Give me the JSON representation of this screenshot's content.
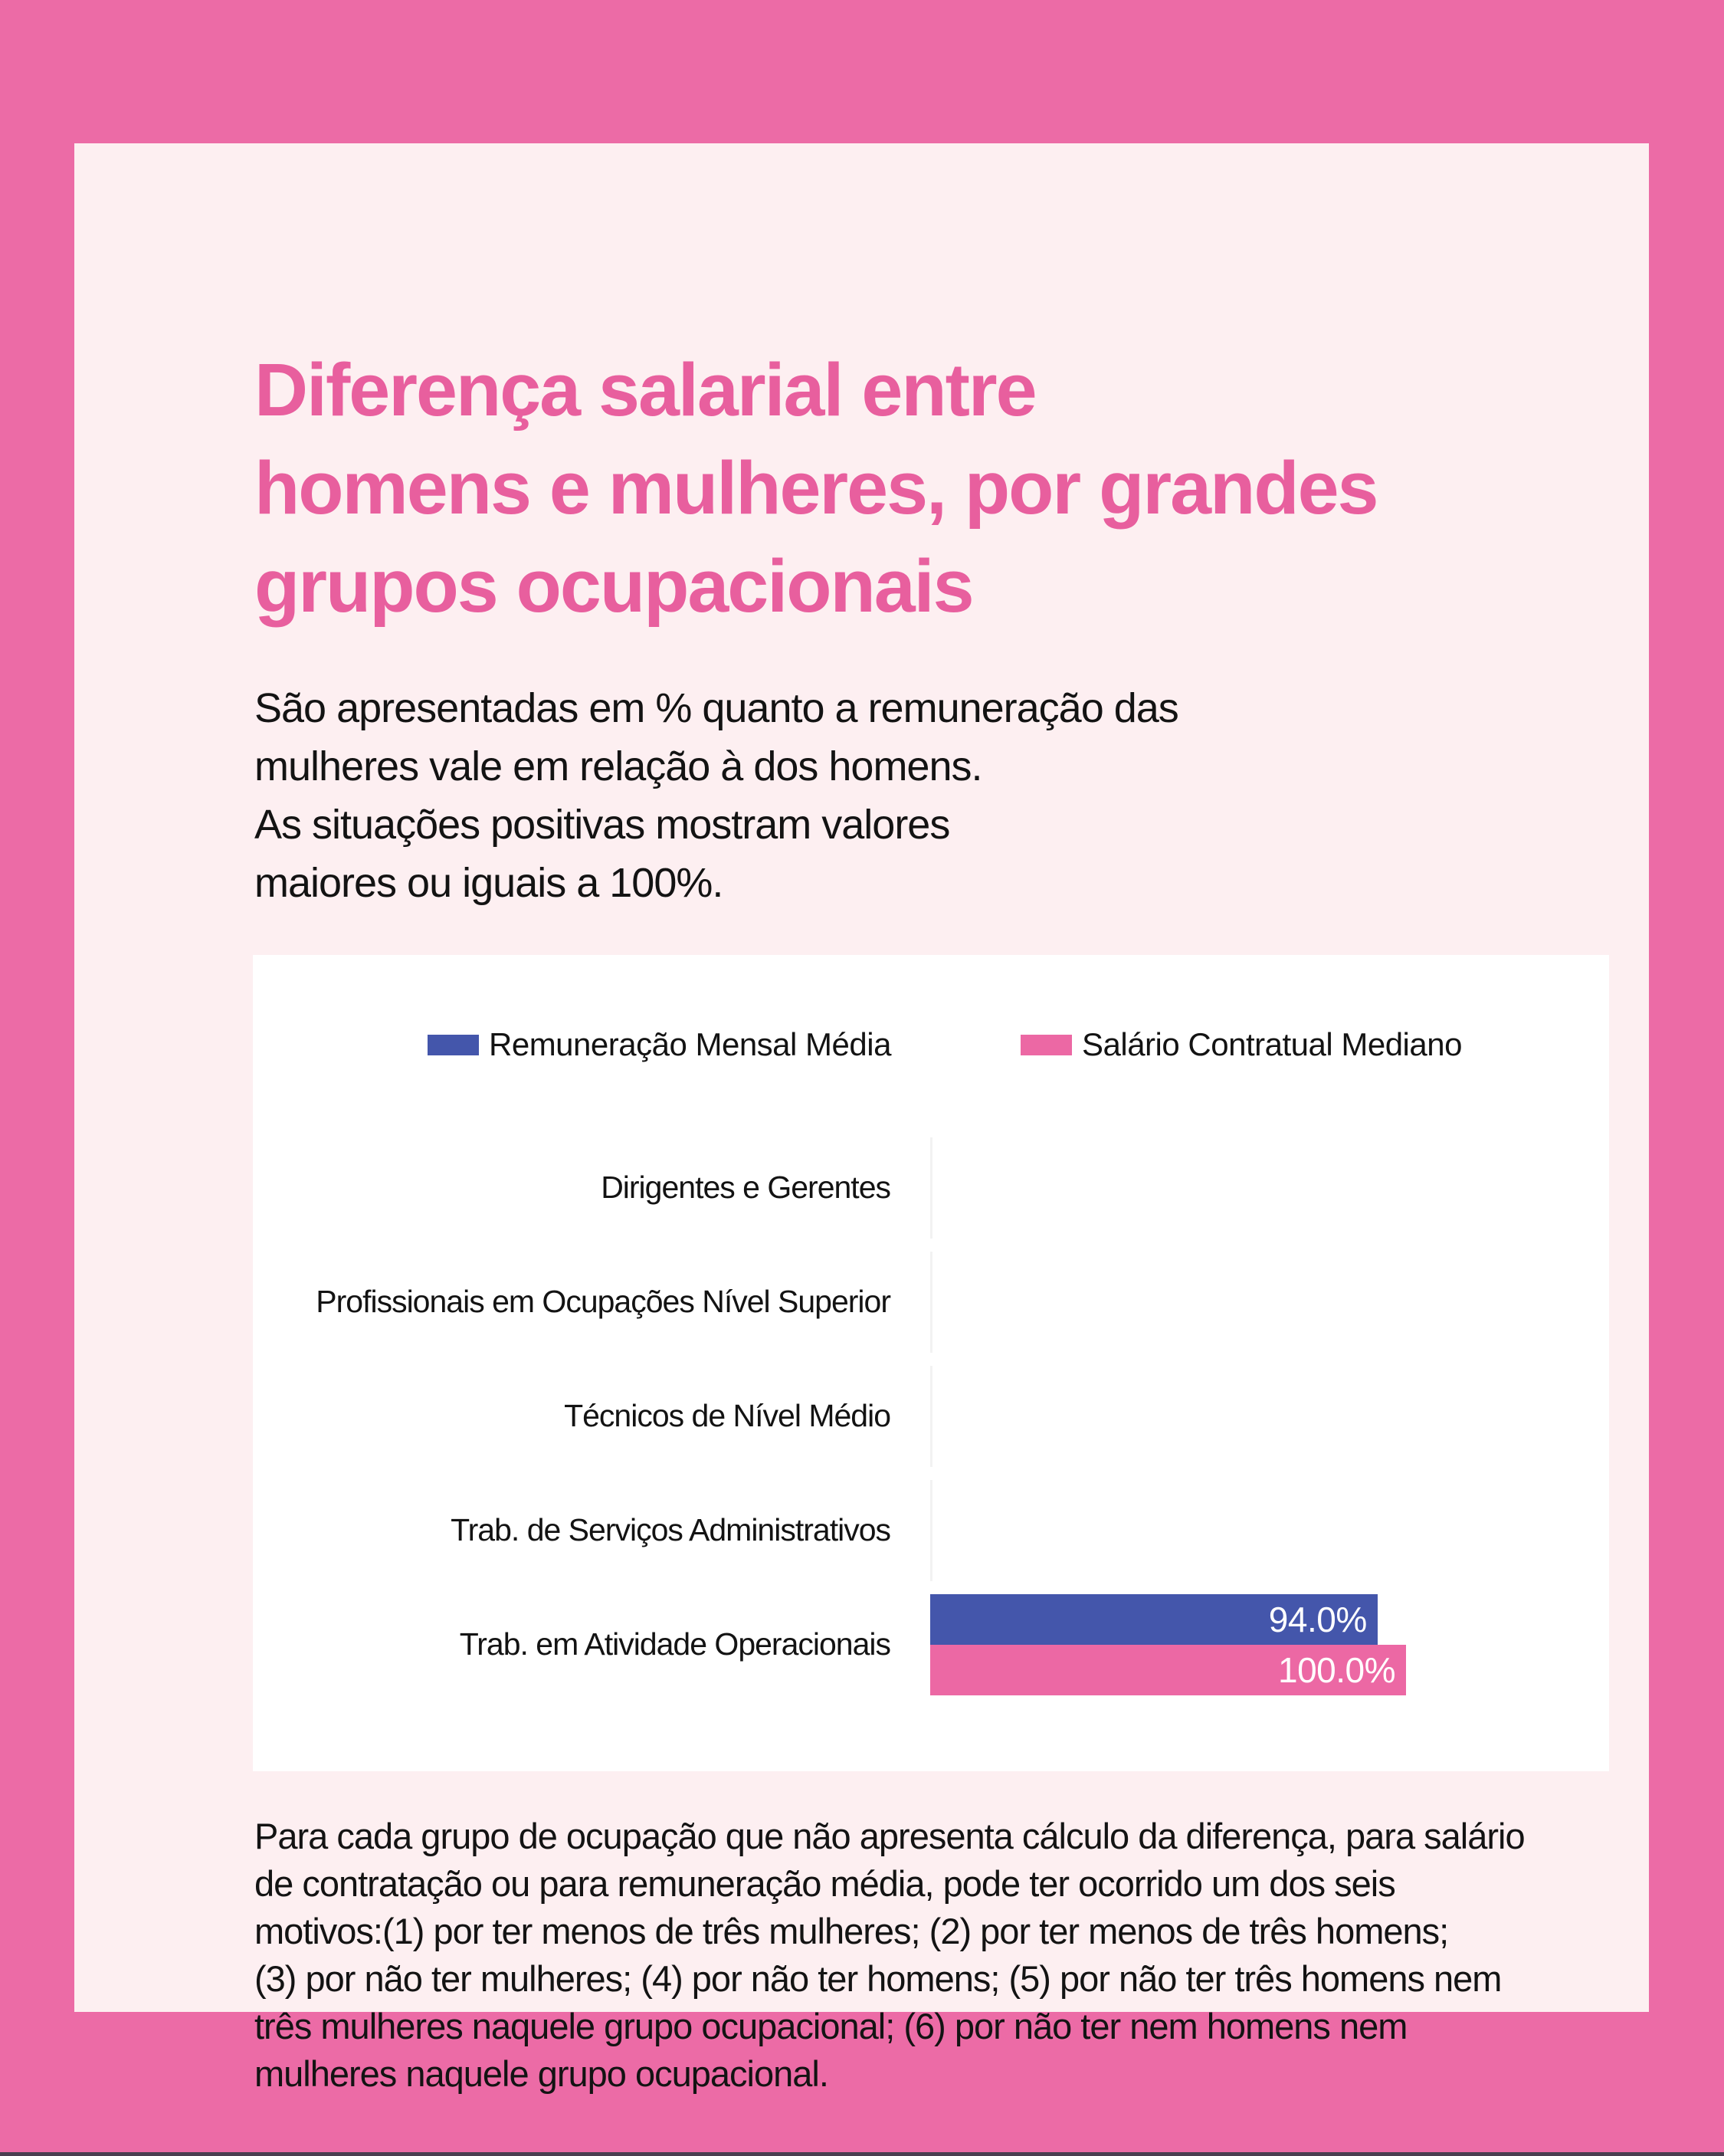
{
  "header": {
    "title": "Diferença salarial entre\nhomens e mulheres, por grandes\ngrupos ocupacionais",
    "subtitle": "São apresentadas em % quanto a remuneração das\nmulheres vale em relação à dos homens.\nAs situações positivas mostram valores\nmaiores ou iguais a 100%."
  },
  "chart_data": {
    "type": "bar",
    "orientation": "horizontal",
    "categories": [
      "Dirigentes e Gerentes",
      "Profissionais em Ocupações Nível Superior",
      "Técnicos de Nível Médio",
      "Trab. de Serviços Administrativos",
      "Trab. em Atividade Operacionais"
    ],
    "series": [
      {
        "name": "Remuneração Mensal Média",
        "color": "#4456ab",
        "values": [
          null,
          null,
          null,
          null,
          94.0
        ],
        "labels": [
          null,
          null,
          null,
          null,
          "94.0%"
        ]
      },
      {
        "name": "Salário Contratual Mediano",
        "color": "#ec68a4",
        "values": [
          null,
          null,
          null,
          null,
          100.0
        ],
        "labels": [
          null,
          null,
          null,
          null,
          "100.0%"
        ]
      }
    ],
    "xlim": [
      0,
      100
    ],
    "value_unit": "%",
    "legend_position": "top",
    "grid": false
  },
  "footnote": {
    "text": "Para cada grupo de ocupação que não apresenta cálculo da diferença, para salário\nde contratação ou para remuneração média, pode ter ocorrido um dos seis\nmotivos:(1) por ter menos de três mulheres; (2) por ter menos de três homens;\n(3) por não ter mulheres; (4) por não ter homens; (5) por não ter três homens nem\ntrês mulheres naquele grupo ocupacional; (6) por não ter nem homens nem\nmulheres naquele grupo ocupacional."
  },
  "colors": {
    "background": "#ec6ba6",
    "panel": "#fdeff1",
    "title": "#e85f9e",
    "bar_blue": "#4456ab",
    "bar_pink": "#ec68a4",
    "text": "#131313",
    "card": "#ffffff",
    "bottom_line": "#4a3e50"
  }
}
